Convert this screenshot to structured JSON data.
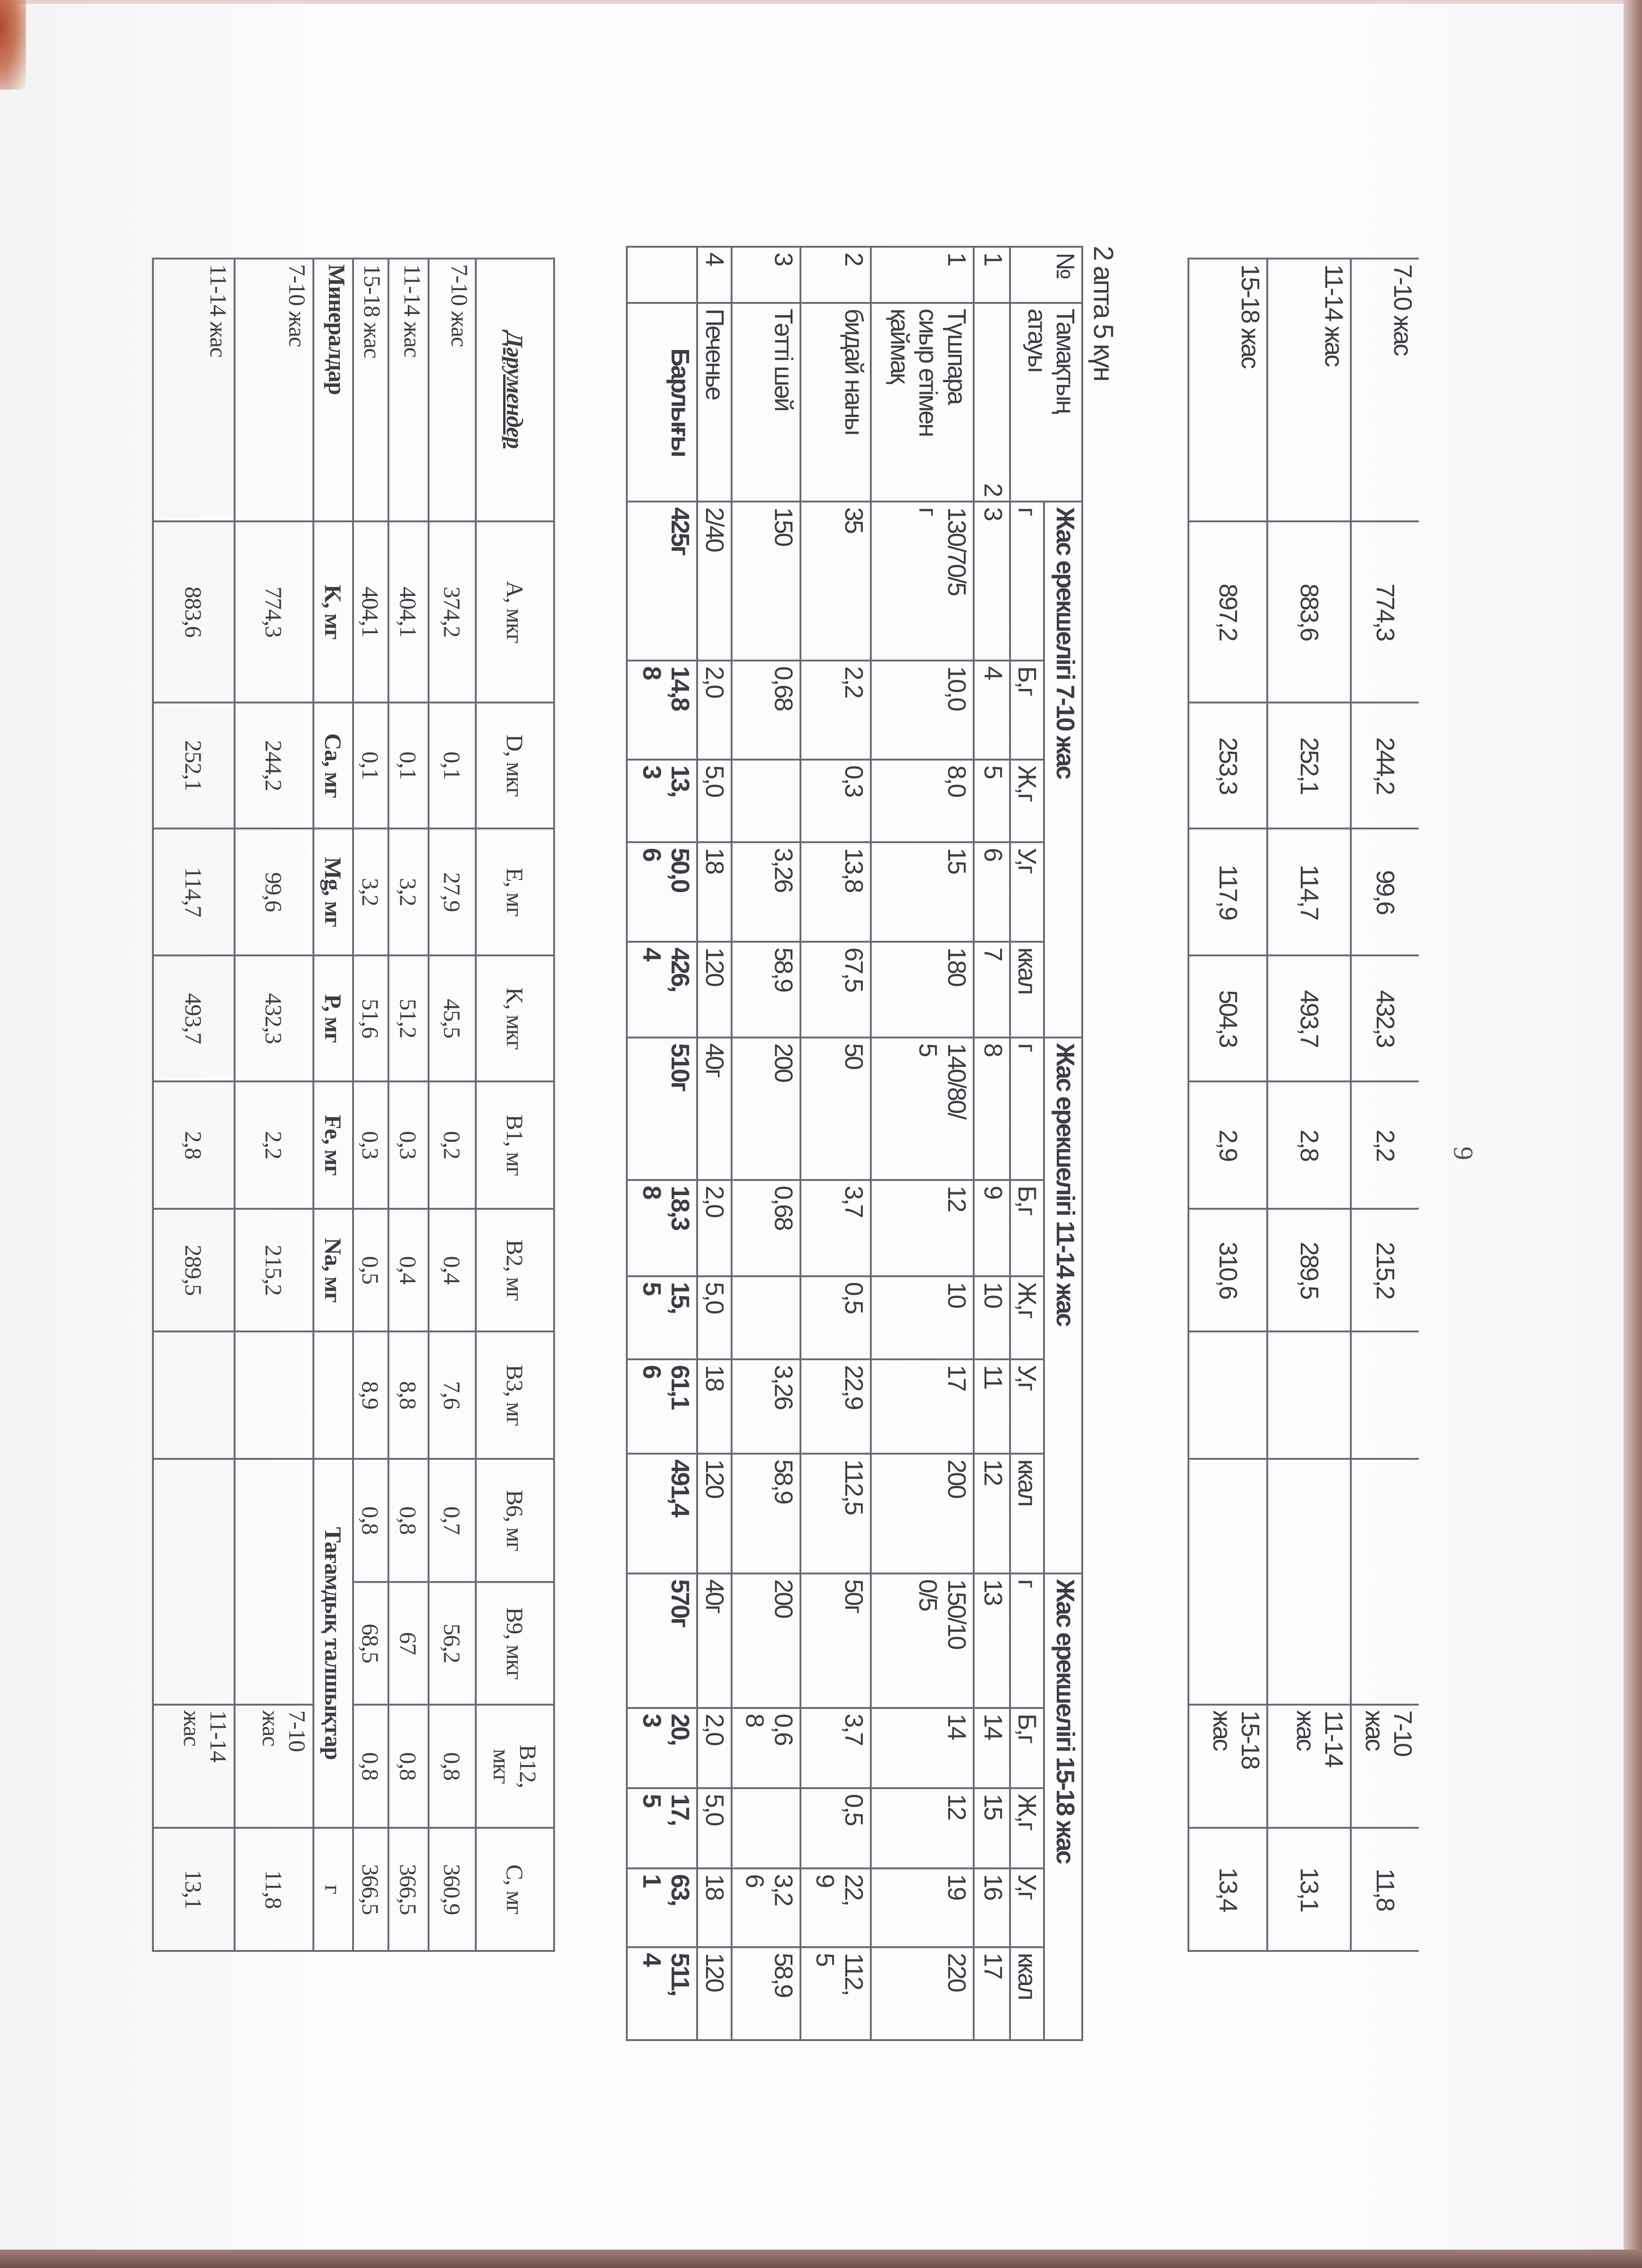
{
  "page_number": "9",
  "colors": {
    "paper": "#fafafa",
    "ink": "#3c3c44",
    "rule": "#6b6b78",
    "page_edge": "#7a5a50"
  },
  "continuation_table": {
    "rows": [
      {
        "label": "7-10 жас",
        "values": [
          "774,3",
          "244,2",
          "99,6",
          "432,3",
          "2,2",
          "215,2"
        ],
        "blank": "",
        "fiber_blank": "",
        "fiber_age": "7-10\nжас",
        "fiber_value": "11,8"
      },
      {
        "label": "11-14 жас",
        "values": [
          "883,6",
          "252,1",
          "114,7",
          "493,7",
          "2,8",
          "289,5"
        ],
        "blank": "",
        "fiber_blank": "",
        "fiber_age": "11-14\nжас",
        "fiber_value": "13,1"
      },
      {
        "label": "15-18 жас",
        "values": [
          "897,2",
          "253,3",
          "117,9",
          "504,3",
          "2,9",
          "310,6"
        ],
        "blank": "",
        "fiber_blank": "",
        "fiber_age": "15-18\nжас",
        "fiber_value": "13,4"
      }
    ]
  },
  "week_heading": "2 апта 5 күн",
  "menu_table": {
    "header": {
      "number": "№",
      "name": "Тамақтың\nатауы",
      "groups": [
        {
          "title": "Жас ерекшелігі 7-10 жас",
          "units": [
            "г",
            "Б,г",
            "Ж,г",
            "У,г",
            "ккал"
          ]
        },
        {
          "title": "Жас ерекшелігі 11-14 жас",
          "units": [
            "г",
            "Б,г",
            "Ж,г",
            "У,г",
            "ккал"
          ]
        },
        {
          "title": "Жас ерекшелігі 15-18 жас",
          "units": [
            "г",
            "Б,г",
            "Ж,г",
            "У,г",
            "ккал"
          ]
        }
      ]
    },
    "column_numbers": [
      "1",
      "2",
      "3",
      "4",
      "5",
      "6",
      "7",
      "8",
      "9",
      "10",
      "11",
      "12",
      "13",
      "14",
      "15",
      "16",
      "17"
    ],
    "rows": [
      {
        "no": "1",
        "name": "Түшпара\nсиыр етімен\nқаймақ",
        "cells": [
          "130/70/5\nг",
          "10,0",
          "8,0",
          "15",
          "180",
          "140/80/\n5",
          "12",
          "10",
          "17",
          "200",
          "150/10\n0/5",
          "14",
          "12",
          "19",
          "220"
        ]
      },
      {
        "no": "2",
        "name": "бидай наны",
        "cells": [
          "35",
          "2,2",
          "0,3",
          "13,8",
          "67,5",
          "50",
          "3,7",
          "0,5",
          "22,9",
          "112,5",
          "50г",
          "3,7",
          "0,5",
          "22,\n9",
          "112,\n5"
        ]
      },
      {
        "no": "3",
        "name": "Тәтті шәй",
        "cells": [
          "150",
          "0,68",
          "",
          "3,26",
          "58,9",
          "200",
          "0,68",
          "",
          "3,26",
          "58,9",
          "200",
          "0,6\n8",
          "",
          "3,2\n6",
          "58,9"
        ]
      },
      {
        "no": "4",
        "name": "Печенье",
        "cells": [
          "2/40",
          "2,0",
          "5,0",
          "18",
          "120",
          "40г",
          "2,0",
          "5,0",
          "18",
          "120",
          "40г",
          "2,0",
          "5,0",
          "18",
          "120"
        ]
      }
    ],
    "total": {
      "no": "",
      "label": "Барлығы",
      "cells": [
        "425г",
        "14,8\n8",
        "13,\n3",
        "50,0\n6",
        "426,\n4",
        "510г",
        "18,3\n8",
        "15,\n5",
        "61,1\n6",
        "491,4",
        "570г",
        "20,\n3",
        "17,\n5",
        "63,\n1",
        "511,\n4"
      ]
    }
  },
  "nutrients_table": {
    "vitamins": {
      "header_label": "Дәрумендер",
      "headers": [
        "A, мкг",
        "D, мкг",
        "E, мг",
        "K, мкг",
        "B1, мг",
        "B2, мг",
        "B3, мг",
        "B6, мг",
        "B9, мкг",
        "B12,\nмкг",
        "C, мг"
      ],
      "rows": [
        {
          "label": "7-10 жас",
          "values": [
            "374,2",
            "0,1",
            "27,9",
            "45,5",
            "0,2",
            "0,4",
            "7,6",
            "0,7",
            "56,2",
            "0,8",
            "360,9"
          ]
        },
        {
          "label": "11-14 жас",
          "values": [
            "404,1",
            "0,1",
            "3,2",
            "51,2",
            "0,3",
            "0,4",
            "8,8",
            "0,8",
            "67",
            "0,8",
            "366,5"
          ]
        },
        {
          "label": "15-18 жас",
          "values": [
            "404,1",
            "0,1",
            "3,2",
            "51,6",
            "0,3",
            "0,5",
            "8,9",
            "0,8",
            "68,5",
            "0,8",
            "366,5"
          ]
        }
      ]
    },
    "minerals": {
      "header_label": "Минералдар",
      "headers": [
        "K, мг",
        "Ca, мг",
        "Mg, мг",
        "P, мг",
        "Fe, мг",
        "Na, мг"
      ],
      "blank": "",
      "fiber_header": "Тағамдық талшықтар",
      "fiber_unit": "г",
      "rows": [
        {
          "label": "7-10 жас",
          "values": [
            "774,3",
            "244,2",
            "99,6",
            "432,3",
            "2,2",
            "215,2"
          ],
          "blank": "",
          "fiber_blank": "",
          "fiber_age": "7-10\nжас",
          "fiber_value": "11,8"
        },
        {
          "label": "11-14 жас",
          "values": [
            "883,6",
            "252,1",
            "114,7",
            "493,7",
            "2,8",
            "289,5"
          ],
          "blank": "",
          "fiber_blank": "",
          "fiber_age": "11-14\nжас",
          "fiber_value": "13,1"
        }
      ]
    }
  }
}
